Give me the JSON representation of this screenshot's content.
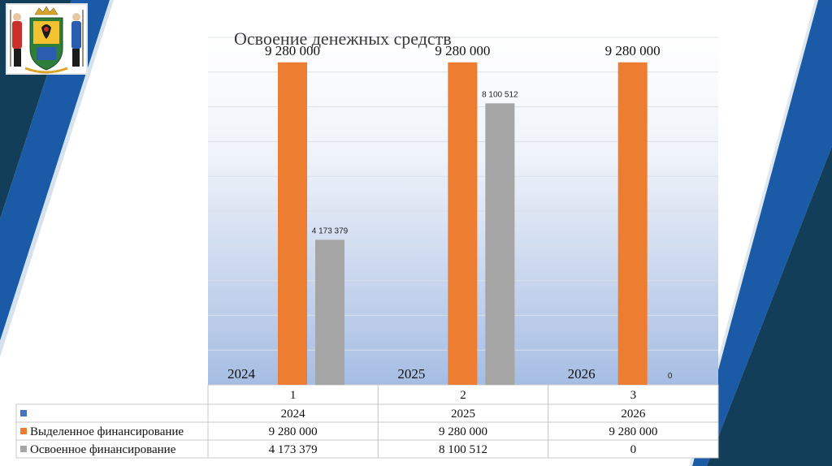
{
  "colors": {
    "background": "#ffffff",
    "dark_band": "#123e5a",
    "blue_band": "#1a5aa6",
    "plot_top": "#ffffff",
    "plot_bottom": "#a6bde3",
    "gridline": "#d9dfe8",
    "series_allocated": "#ed7d31",
    "series_used": "#a5a5a5",
    "blank_marker": "#4472c4"
  },
  "icons": {
    "emblem": "city-coat-of-arms-emblem"
  },
  "chart_data": {
    "type": "bar",
    "title": "Освоение денежных средств",
    "categories": [
      "1",
      "2",
      "3"
    ],
    "category_years": [
      "2024",
      "2025",
      "2026"
    ],
    "ylim": [
      0,
      10000000
    ],
    "grid": true,
    "series": [
      {
        "name": "Выделенное финансирование",
        "color": "#ed7d31",
        "values": [
          9280000,
          9280000,
          9280000
        ],
        "labels": [
          "9 280 000",
          "9 280 000",
          "9 280 000"
        ]
      },
      {
        "name": "Освоенное финансирование",
        "color": "#a5a5a5",
        "values": [
          4173379,
          8100512,
          0
        ],
        "labels": [
          "4 173 379",
          "8 100 512",
          "0"
        ]
      }
    ],
    "table": {
      "rows": [
        {
          "legend": "",
          "color": "#4472c4",
          "cells": [
            "2024",
            "2025",
            "2026"
          ]
        },
        {
          "legend": "Выделенное финансирование",
          "color": "#ed7d31",
          "cells": [
            "9 280 000",
            "9 280 000",
            "9 280 000"
          ]
        },
        {
          "legend": "Освоенное финансирование",
          "color": "#a5a5a5",
          "cells": [
            "4 173 379",
            "8 100 512",
            "0"
          ]
        }
      ]
    }
  }
}
